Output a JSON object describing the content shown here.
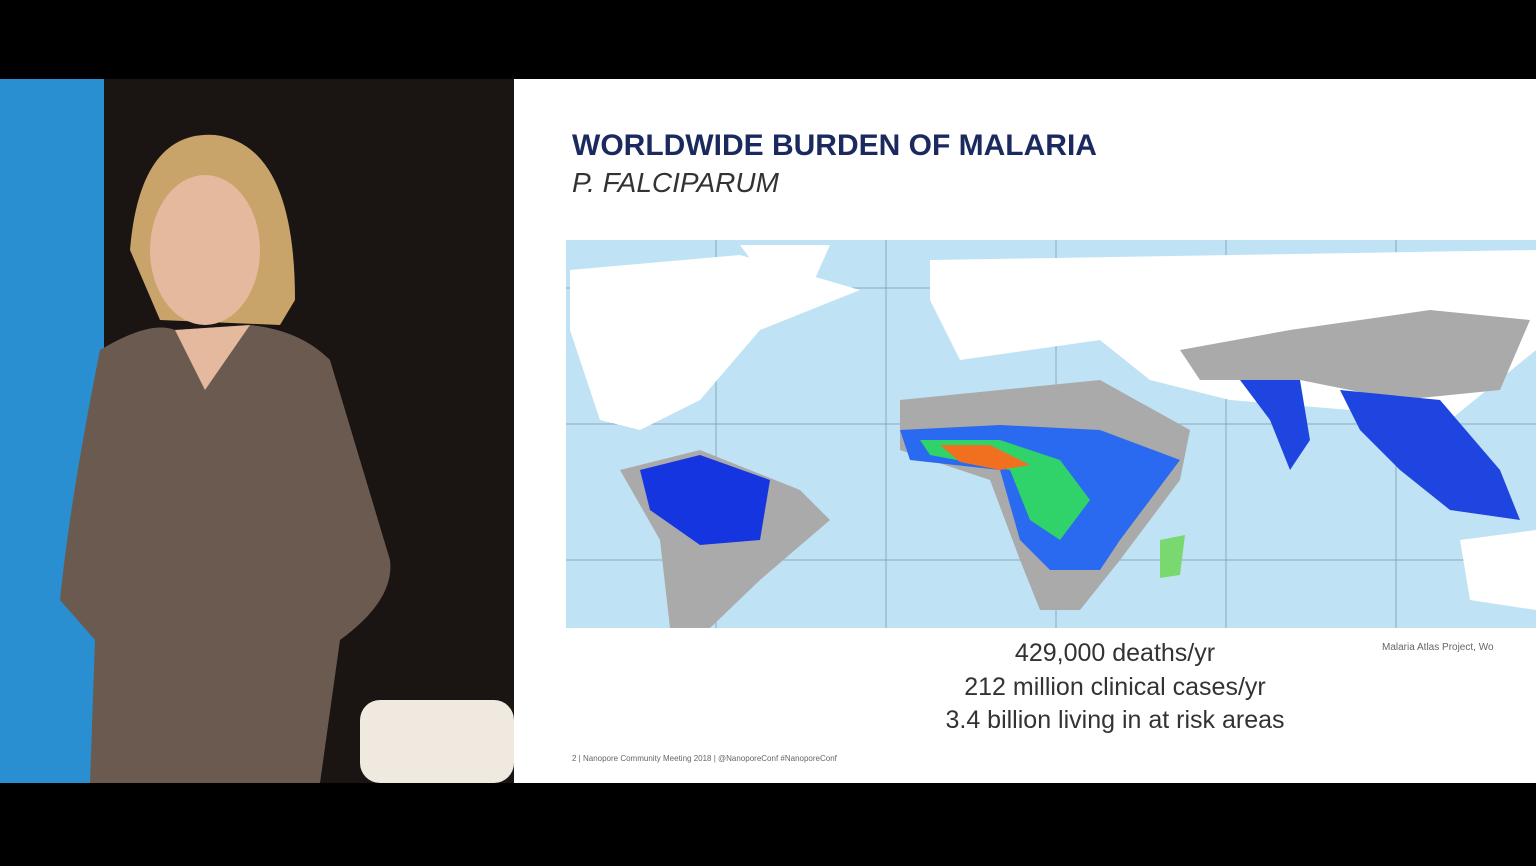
{
  "slide": {
    "title": "WORLDWIDE BURDEN OF MALARIA",
    "subtitle": "P. FALCIPARUM",
    "stats": [
      "429,000 deaths/yr",
      "212 million clinical cases/yr",
      "3.4 billion living in at risk areas"
    ],
    "source": "Malaria Atlas Project, Wo",
    "footer": "2 | Nanopore Community Meeting 2018 | @NanoporeConf #NanoporeConf"
  }
}
